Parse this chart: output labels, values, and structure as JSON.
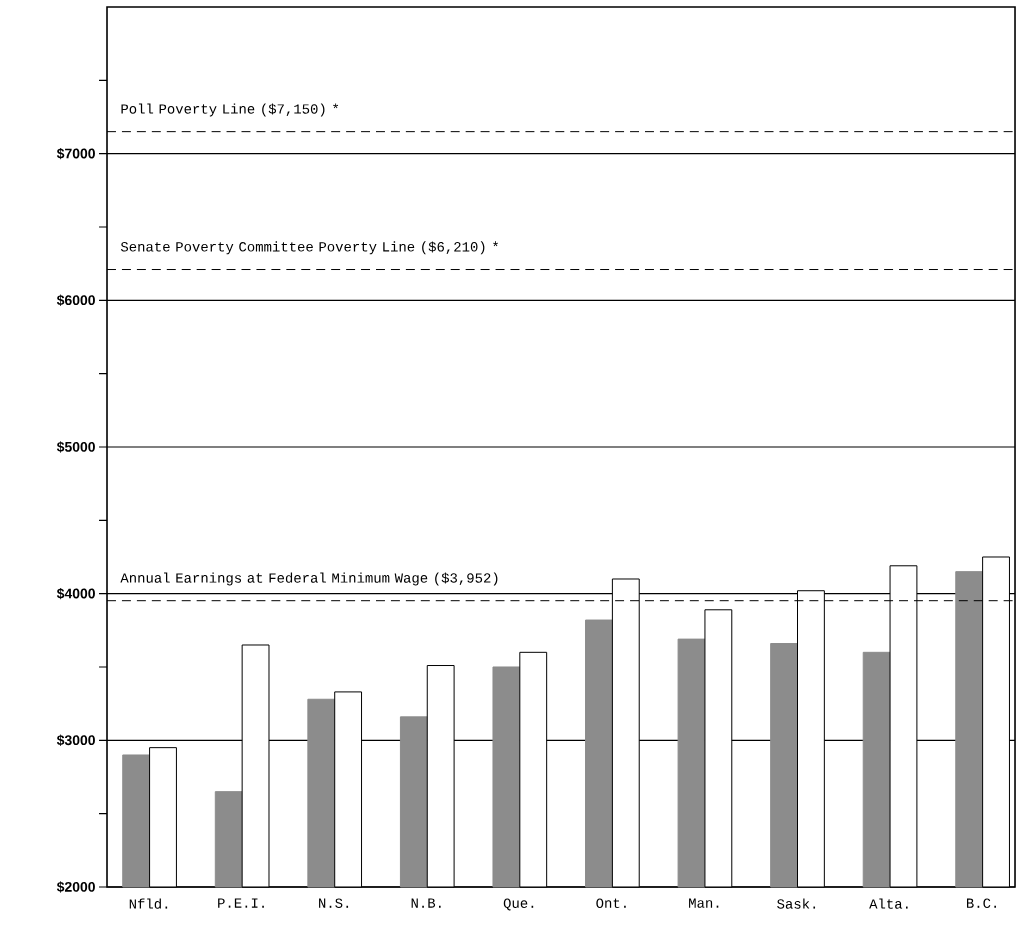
{
  "chart_data": {
    "type": "bar",
    "categories": [
      "Nfld.",
      "P.E.I.",
      "N.S.",
      "N.B.",
      "Que.",
      "Ont.",
      "Man.",
      "Sask.",
      "Alta.",
      "B.C."
    ],
    "series": [
      {
        "color": "#8c8c8c",
        "values": [
          2900,
          2650,
          3280,
          3160,
          3500,
          3820,
          3690,
          3660,
          3600,
          4150
        ]
      },
      {
        "color": "#ffffff",
        "values": [
          2950,
          3650,
          3330,
          3510,
          3600,
          4100,
          3890,
          4020,
          4190,
          4250
        ]
      }
    ],
    "ylim": [
      2000,
      8000
    ],
    "yticks": [
      {
        "value": 2000,
        "label": "$2000"
      },
      {
        "value": 2500,
        "label": null
      },
      {
        "value": 3000,
        "label": "$3000"
      },
      {
        "value": 3500,
        "label": null
      },
      {
        "value": 4000,
        "label": "$4000"
      },
      {
        "value": 4500,
        "label": null
      },
      {
        "value": 5000,
        "label": "$5000"
      },
      {
        "value": 5500,
        "label": null
      },
      {
        "value": 6000,
        "label": "$6000"
      },
      {
        "value": 6500,
        "label": null
      },
      {
        "value": 7000,
        "label": "$7000"
      },
      {
        "value": 7500,
        "label": null
      }
    ],
    "grid": "y",
    "ref_lines": [
      {
        "axis": "y",
        "value": 7150,
        "label": "Poll Poverty Line ($7,150) *",
        "line_style": "dashed"
      },
      {
        "axis": "y",
        "value": 6210,
        "label": "Senate Poverty Committee Poverty Line ($6,210) *",
        "line_style": "dashed"
      },
      {
        "axis": "y",
        "value": 3952,
        "label": "Annual Earnings at Federal Minimum Wage ($3,952)",
        "line_style": "dashed"
      }
    ]
  }
}
